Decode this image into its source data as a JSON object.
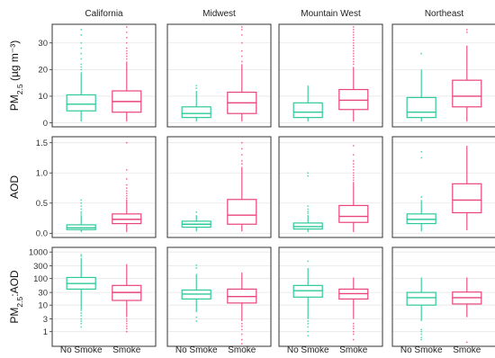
{
  "chart_data": {
    "type": "boxplot",
    "facet_columns": [
      "California",
      "Midwest",
      "Mountain West",
      "Northeast"
    ],
    "categories": [
      "No Smoke",
      "Smoke"
    ],
    "colors": {
      "No Smoke": "#2ec99a",
      "Smoke": "#e8457a"
    },
    "rows": [
      {
        "key": "pm25",
        "ylabel_main": "PM",
        "ylabel_sub": "2.5",
        "ylabel_unit": " (µg m⁻³)",
        "scale": "linear",
        "ylim": [
          -1.5,
          37
        ],
        "ticks": [
          0,
          10,
          20,
          30
        ],
        "tick_labels": [
          "0",
          "10",
          "20",
          "30"
        ],
        "panels": [
          {
            "facet": "California",
            "boxes": [
              {
                "category": "No Smoke",
                "whislo": 0.5,
                "q1": 4.5,
                "med": 7,
                "q3": 10.5,
                "whishi": 19,
                "fliers": [
                  20,
                  21,
                  22,
                  24,
                  26,
                  28,
                  30,
                  33,
                  35
                ]
              },
              {
                "category": "Smoke",
                "whislo": 0.5,
                "q1": 4,
                "med": 8,
                "q3": 12,
                "whishi": 23,
                "fliers": [
                  24,
                  25,
                  26,
                  27,
                  28,
                  30,
                  32,
                  34,
                  36
                ]
              }
            ]
          },
          {
            "facet": "Midwest",
            "boxes": [
              {
                "category": "No Smoke",
                "whislo": 0.5,
                "q1": 2,
                "med": 3.5,
                "q3": 6,
                "whishi": 12,
                "fliers": [
                  13,
                  14
                ]
              },
              {
                "category": "Smoke",
                "whislo": 0.5,
                "q1": 3.5,
                "med": 7.5,
                "q3": 11.5,
                "whishi": 22,
                "fliers": [
                  23,
                  25,
                  27,
                  30,
                  33,
                  35,
                  36
                ]
              }
            ]
          },
          {
            "facet": "Mountain West",
            "boxes": [
              {
                "category": "No Smoke",
                "whislo": 0.5,
                "q1": 2,
                "med": 4,
                "q3": 7.5,
                "whishi": 14,
                "fliers": []
              },
              {
                "category": "Smoke",
                "whislo": 0.5,
                "q1": 5,
                "med": 8.5,
                "q3": 12.5,
                "whishi": 21,
                "fliers": [
                  22,
                  23,
                  24,
                  25,
                  26,
                  27,
                  28,
                  29,
                  30,
                  31,
                  32,
                  33,
                  34,
                  35,
                  36
                ]
              }
            ]
          },
          {
            "facet": "Northeast",
            "boxes": [
              {
                "category": "No Smoke",
                "whislo": 0.5,
                "q1": 2,
                "med": 4,
                "q3": 9.5,
                "whishi": 20,
                "fliers": [
                  26
                ]
              },
              {
                "category": "Smoke",
                "whislo": 0.5,
                "q1": 6,
                "med": 10,
                "q3": 16,
                "whishi": 29,
                "fliers": [
                  34,
                  35
                ]
              }
            ]
          }
        ]
      },
      {
        "key": "aod",
        "ylabel_main": "AOD",
        "ylabel_sub": "",
        "ylabel_unit": "",
        "scale": "linear",
        "ylim": [
          -0.07,
          1.6
        ],
        "ticks": [
          0.0,
          0.5,
          1.0,
          1.5
        ],
        "tick_labels": [
          "0.0",
          "0.5",
          "1.0",
          "1.5"
        ],
        "panels": [
          {
            "facet": "California",
            "boxes": [
              {
                "category": "No Smoke",
                "whislo": 0.02,
                "q1": 0.06,
                "med": 0.09,
                "q3": 0.14,
                "whishi": 0.3,
                "fliers": [
                  0.32,
                  0.35,
                  0.4,
                  0.45,
                  0.5,
                  0.55
                ]
              },
              {
                "category": "Smoke",
                "whislo": 0.02,
                "q1": 0.16,
                "med": 0.23,
                "q3": 0.32,
                "whishi": 0.56,
                "fliers": [
                  0.58,
                  0.62,
                  0.66,
                  0.7,
                  0.75,
                  0.8,
                  0.9,
                  1.05,
                  1.5
                ]
              }
            ]
          },
          {
            "facet": "Midwest",
            "boxes": [
              {
                "category": "No Smoke",
                "whislo": 0.03,
                "q1": 0.1,
                "med": 0.15,
                "q3": 0.2,
                "whishi": 0.3,
                "fliers": [
                  0.35
                ]
              },
              {
                "category": "Smoke",
                "whislo": 0.03,
                "q1": 0.15,
                "med": 0.3,
                "q3": 0.56,
                "whishi": 1.1,
                "fliers": [
                  1.15,
                  1.2,
                  1.3,
                  1.4,
                  1.5
                ]
              }
            ]
          },
          {
            "facet": "Mountain West",
            "boxes": [
              {
                "category": "No Smoke",
                "whislo": 0.02,
                "q1": 0.07,
                "med": 0.11,
                "q3": 0.17,
                "whishi": 0.3,
                "fliers": [
                  0.33,
                  0.36,
                  0.4,
                  0.45,
                  0.95,
                  1.0
                ]
              },
              {
                "category": "Smoke",
                "whislo": 0.02,
                "q1": 0.18,
                "med": 0.28,
                "q3": 0.46,
                "whishi": 0.85,
                "fliers": [
                  0.88,
                  0.92,
                  0.96,
                  1.0,
                  1.05,
                  1.1,
                  1.15,
                  1.2,
                  1.3,
                  1.45
                ]
              }
            ]
          },
          {
            "facet": "Northeast",
            "boxes": [
              {
                "category": "No Smoke",
                "whislo": 0.03,
                "q1": 0.16,
                "med": 0.23,
                "q3": 0.32,
                "whishi": 0.55,
                "fliers": [
                  0.6,
                  1.25,
                  1.35
                ]
              },
              {
                "category": "Smoke",
                "whislo": 0.05,
                "q1": 0.34,
                "med": 0.55,
                "q3": 0.82,
                "whishi": 1.45,
                "fliers": []
              }
            ]
          }
        ]
      },
      {
        "key": "ratio",
        "ylabel_main": "PM",
        "ylabel_sub": "2.5",
        "ylabel_unit": ":AOD",
        "scale": "log",
        "ylim": [
          0.28,
          1500
        ],
        "ticks": [
          1,
          3,
          10,
          30,
          100,
          300,
          1000
        ],
        "tick_labels": [
          "1",
          "3",
          "10",
          "30",
          "100",
          "300",
          "1000"
        ],
        "panels": [
          {
            "facet": "California",
            "boxes": [
              {
                "category": "No Smoke",
                "whislo": 6,
                "q1": 40,
                "med": 65,
                "q3": 110,
                "whishi": 600,
                "fliers": [
                  1.5,
                  2,
                  2.5,
                  3,
                  4,
                  5,
                  700,
                  800
                ]
              },
              {
                "category": "Smoke",
                "whislo": 3.5,
                "q1": 15,
                "med": 30,
                "q3": 55,
                "whishi": 350,
                "fliers": [
                  1,
                  1.3,
                  1.6,
                  2,
                  2.5,
                  3
                ]
              }
            ]
          },
          {
            "facet": "Midwest",
            "boxes": [
              {
                "category": "No Smoke",
                "whislo": 5.5,
                "q1": 17,
                "med": 26,
                "q3": 37,
                "whishi": 150,
                "fliers": [
                  2.5,
                  3.5,
                  250,
                  320
                ]
              },
              {
                "category": "Smoke",
                "whislo": 2.5,
                "q1": 12,
                "med": 21,
                "q3": 40,
                "whishi": 170,
                "fliers": [
                  0.35,
                  0.5,
                  0.8,
                  1.2,
                  1.6,
                  2
                ]
              }
            ]
          },
          {
            "facet": "Mountain West",
            "boxes": [
              {
                "category": "No Smoke",
                "whislo": 3,
                "q1": 20,
                "med": 35,
                "q3": 55,
                "whishi": 250,
                "fliers": [
                  0.7,
                  1,
                  1.5,
                  2,
                  2.5,
                  450
                ]
              },
              {
                "category": "Smoke",
                "whislo": 3,
                "q1": 17,
                "med": 27,
                "q3": 40,
                "whishi": 110,
                "fliers": [
                  0.5,
                  0.8,
                  1,
                  1.3,
                  1.6,
                  2
                ]
              }
            ]
          },
          {
            "facet": "Northeast",
            "boxes": [
              {
                "category": "No Smoke",
                "whislo": 2.5,
                "q1": 10,
                "med": 19,
                "q3": 30,
                "whishi": 110,
                "fliers": [
                  0.5,
                  0.6,
                  0.8,
                  1,
                  1.2
                ]
              },
              {
                "category": "Smoke",
                "whislo": 3.5,
                "q1": 11,
                "med": 19,
                "q3": 31,
                "whishi": 110,
                "fliers": [
                  0.4
                ]
              }
            ]
          }
        ]
      }
    ]
  }
}
